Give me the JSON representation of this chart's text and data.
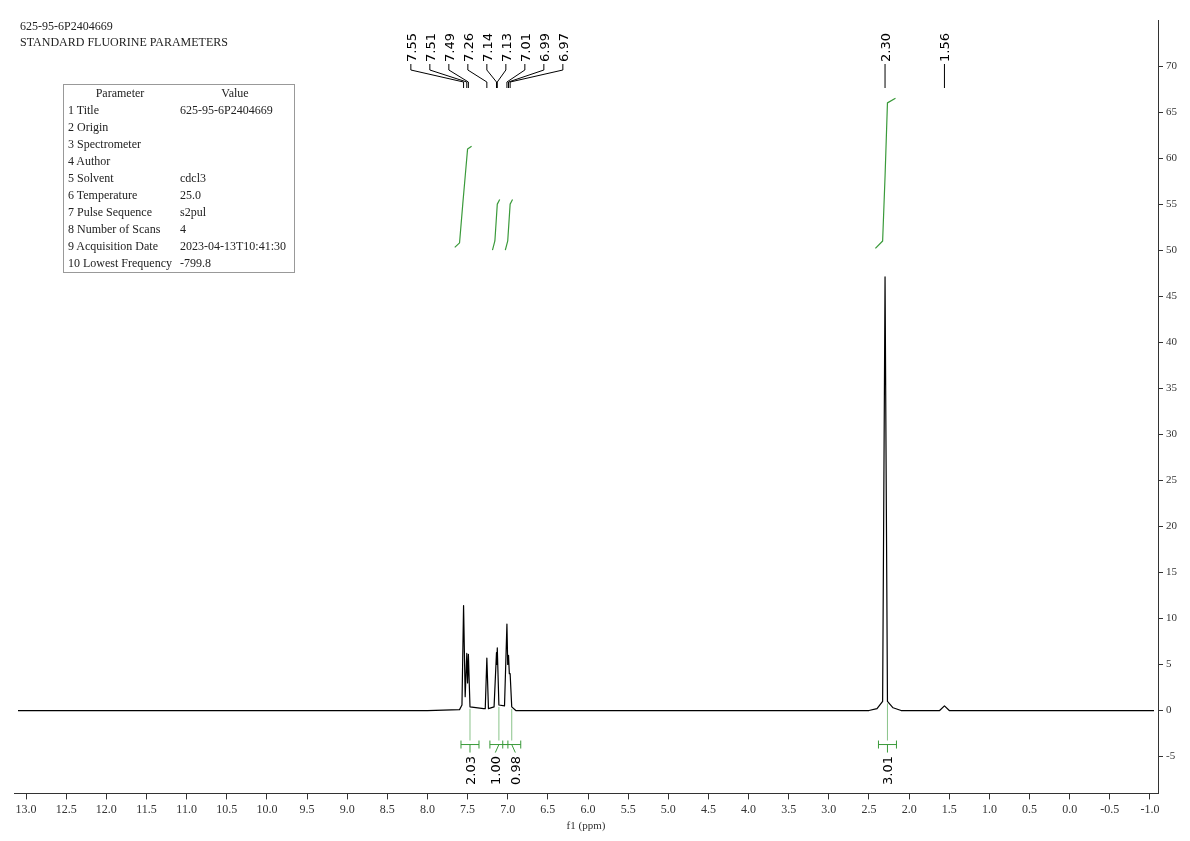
{
  "chart_data": {
    "type": "line",
    "title": "625-95-6P2404669",
    "subtitle": "STANDARD FLUORINE PARAMETERS",
    "xlabel": "f1 (ppm)",
    "xlim": [
      13.15,
      -1.1
    ],
    "ylim": [
      -9,
      75
    ],
    "xticks": [
      {
        "value": 13,
        "label": "13.0"
      },
      12.5,
      {
        "value": 12,
        "label": "12.0"
      },
      11.5,
      {
        "value": 11,
        "label": "11.0"
      },
      10.5,
      {
        "value": 10,
        "label": "10.0"
      },
      9.5,
      {
        "value": 9,
        "label": "9.0"
      },
      8.5,
      {
        "value": 8,
        "label": "8.0"
      },
      7.5,
      {
        "value": 7,
        "label": "7.0"
      },
      6.5,
      {
        "value": 6,
        "label": "6.0"
      },
      5.5,
      {
        "value": 5,
        "label": "5.0"
      },
      4.5,
      {
        "value": 4,
        "label": "4.0"
      },
      3.5,
      {
        "value": 3,
        "label": "3.0"
      },
      2.5,
      {
        "value": 2,
        "label": "2.0"
      },
      1.5,
      {
        "value": 1,
        "label": "1.0"
      },
      0.5,
      {
        "value": 0,
        "label": "0.0"
      },
      -0.5,
      {
        "value": -1,
        "label": "-1.0"
      }
    ],
    "yticks": [
      -5,
      0,
      5,
      10,
      15,
      20,
      25,
      30,
      35,
      40,
      45,
      50,
      55,
      60,
      65,
      70
    ],
    "grid": false,
    "legend": false,
    "marker": "none",
    "line_style": "solid",
    "series": [
      {
        "color": "#000000",
        "x": [
          13.1,
          8.0,
          7.6,
          7.57,
          7.55,
          7.53,
          7.51,
          7.5,
          7.49,
          7.47,
          7.3,
          7.28,
          7.26,
          7.24,
          7.17,
          7.14,
          7.135,
          7.13,
          7.11,
          7.04,
          7.01,
          7.0,
          6.99,
          6.98,
          6.97,
          6.95,
          6.9,
          2.5,
          2.4,
          2.33,
          2.3,
          2.27,
          2.2,
          2.1,
          1.62,
          1.56,
          1.5,
          -1.05
        ],
        "values": [
          0,
          0,
          0.1,
          0.6,
          11.4,
          1.5,
          6.2,
          3,
          6.1,
          0.4,
          0.2,
          0.2,
          5.7,
          0.2,
          0.4,
          6.3,
          5,
          6.8,
          0.6,
          0.5,
          9.4,
          5,
          6,
          4,
          4,
          0.4,
          0,
          0,
          0.2,
          1,
          47.1,
          1,
          0.3,
          0,
          0,
          0.5,
          0,
          0
        ]
      },
      {
        "color": "#3a9a3a",
        "x": [
          7.66,
          7.6,
          7.56,
          7.53,
          7.5,
          7.45
        ],
        "values": [
          50.3,
          50.8,
          55,
          58,
          61,
          61.3
        ]
      },
      {
        "color": "#3a9a3a",
        "x": [
          7.19,
          7.16,
          7.13,
          7.1
        ],
        "values": [
          50,
          51,
          55,
          55.5
        ]
      },
      {
        "color": "#3a9a3a",
        "x": [
          7.03,
          7.0,
          6.97,
          6.94
        ],
        "values": [
          50,
          51,
          55,
          55.5
        ]
      },
      {
        "color": "#3a9a3a",
        "x": [
          2.42,
          2.33,
          2.3,
          2.27,
          2.17
        ],
        "values": [
          50.2,
          51,
          58,
          66,
          66.5
        ]
      }
    ],
    "annotations": [
      "7.55",
      "7.51",
      "7.49",
      "7.26",
      "7.14",
      "7.13",
      "7.01",
      "6.99",
      "6.97",
      "2.30",
      "1.56",
      {
        "text": "2.03",
        "x": 7.47,
        "y": 0.4
      },
      {
        "text": "1.00",
        "x": 7.11,
        "y": 0.6
      },
      {
        "text": "0.98",
        "x": 6.95,
        "y": 0.4
      },
      {
        "text": "3.01",
        "x": 2.27,
        "y": 1
      },
      "Parameter",
      "Value",
      "1 Title",
      "625-95-6P2404669",
      "2 Origin",
      null,
      "3 Spectrometer",
      null,
      "4 Author",
      null,
      "5 Solvent",
      "cdcl3",
      "6 Temperature",
      "25.0",
      "7 Pulse Sequence",
      "s2pul",
      "8 Number of Scans",
      "4",
      "9 Acquisition Date",
      "2023-04-13T10:41:30",
      "10 Lowest Frequency",
      "-799.8"
    ]
  }
}
